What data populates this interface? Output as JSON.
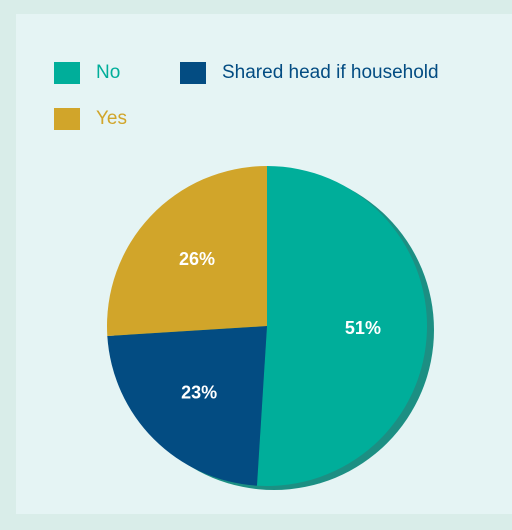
{
  "chart_data": {
    "type": "pie",
    "slices": [
      {
        "name": "No",
        "value": 51,
        "label": "51%",
        "color": "#00ae9a"
      },
      {
        "name": "Shared head if household",
        "value": 23,
        "label": "23%",
        "color": "#034c82"
      },
      {
        "name": "Yes",
        "value": 26,
        "label": "26%",
        "color": "#d1a52a"
      }
    ],
    "legend": [
      {
        "label": "No",
        "color": "#00ae9a",
        "text_color": "#00ae9a"
      },
      {
        "label": "Shared head if household",
        "color": "#034c82",
        "text_color": "#034c82"
      },
      {
        "label": "Yes",
        "color": "#d1a52a",
        "text_color": "#d1a52a"
      }
    ],
    "legend_position": "top-left",
    "unit": "%"
  }
}
